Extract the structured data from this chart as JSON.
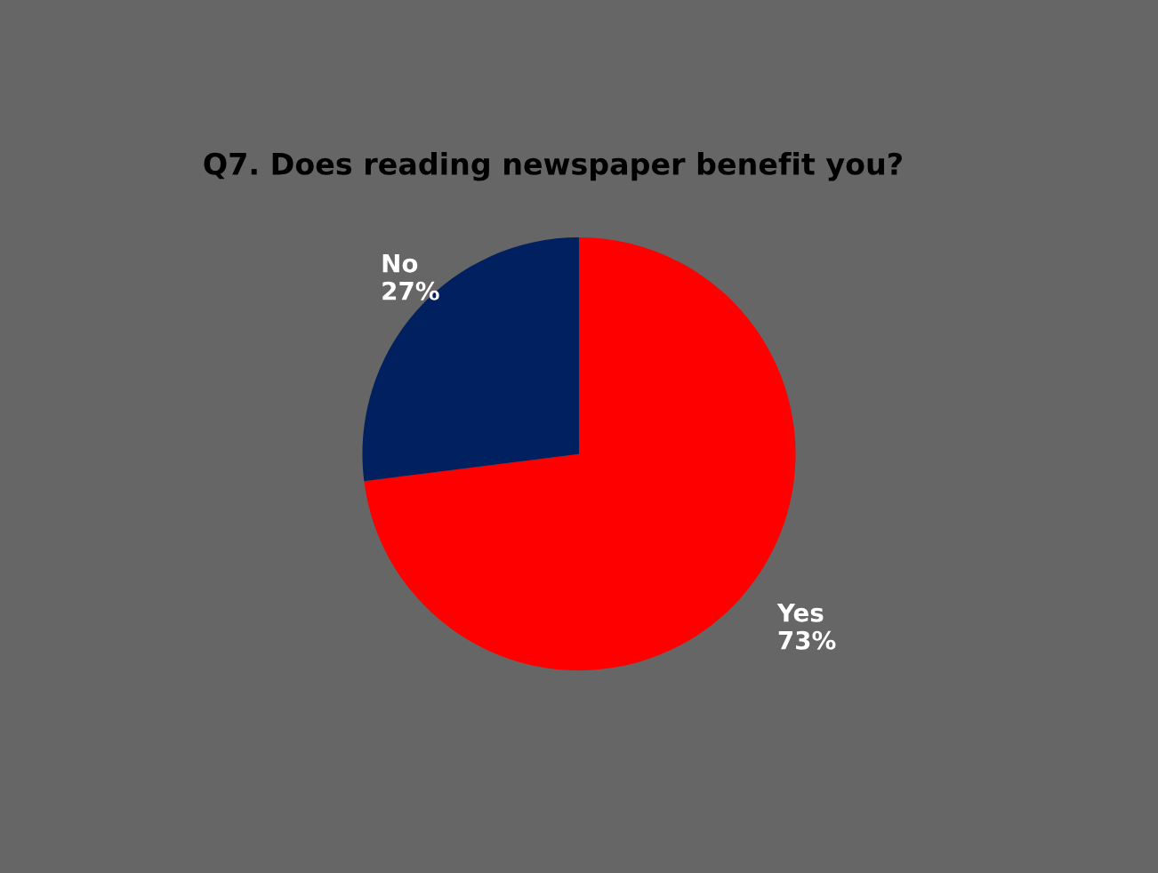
{
  "chart_data": {
    "type": "pie",
    "title": "Q7. Does reading newspaper benefit you?",
    "categories": [
      "Yes",
      "No"
    ],
    "values": [
      73,
      27
    ],
    "colors": [
      "#ff0000",
      "#002060"
    ],
    "value_labels": [
      "73%",
      "27%"
    ],
    "legend": false
  }
}
